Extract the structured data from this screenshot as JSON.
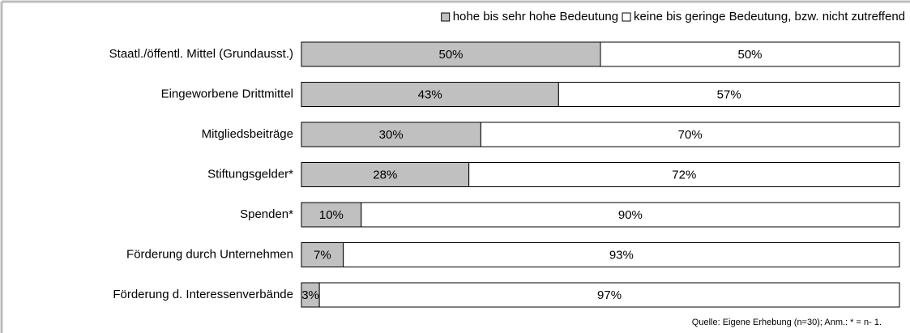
{
  "chart_data": {
    "type": "stacked-bar-horizontal",
    "categories": [
      "Staatl./öffentl. Mittel (Grundausst.)",
      "Eingeworbene Drittmittel",
      "Mitgliedsbeiträge",
      "Stiftungsgelder*",
      "Spenden*",
      "Förderung durch Unternehmen",
      "Förderung d. Interessenverbände"
    ],
    "series": [
      {
        "name": "hohe bis sehr hohe Bedeutung",
        "color": "#c0c0c0",
        "values": [
          50,
          43,
          30,
          28,
          10,
          7,
          3
        ],
        "value_labels": [
          "50%",
          "43%",
          "30%",
          "28%",
          "10%",
          "7%",
          "3%"
        ]
      },
      {
        "name": "keine bis geringe Bedeutung, bzw. nicht zutreffend",
        "color": "#ffffff",
        "values": [
          50,
          57,
          70,
          72,
          90,
          93,
          97
        ],
        "value_labels": [
          "50%",
          "57%",
          "70%",
          "72%",
          "90%",
          "93%",
          "97%"
        ]
      }
    ],
    "legend": "top-right",
    "note": "Quelle: Eigene Erhebung (n=30); Anm.: * = n- 1."
  }
}
